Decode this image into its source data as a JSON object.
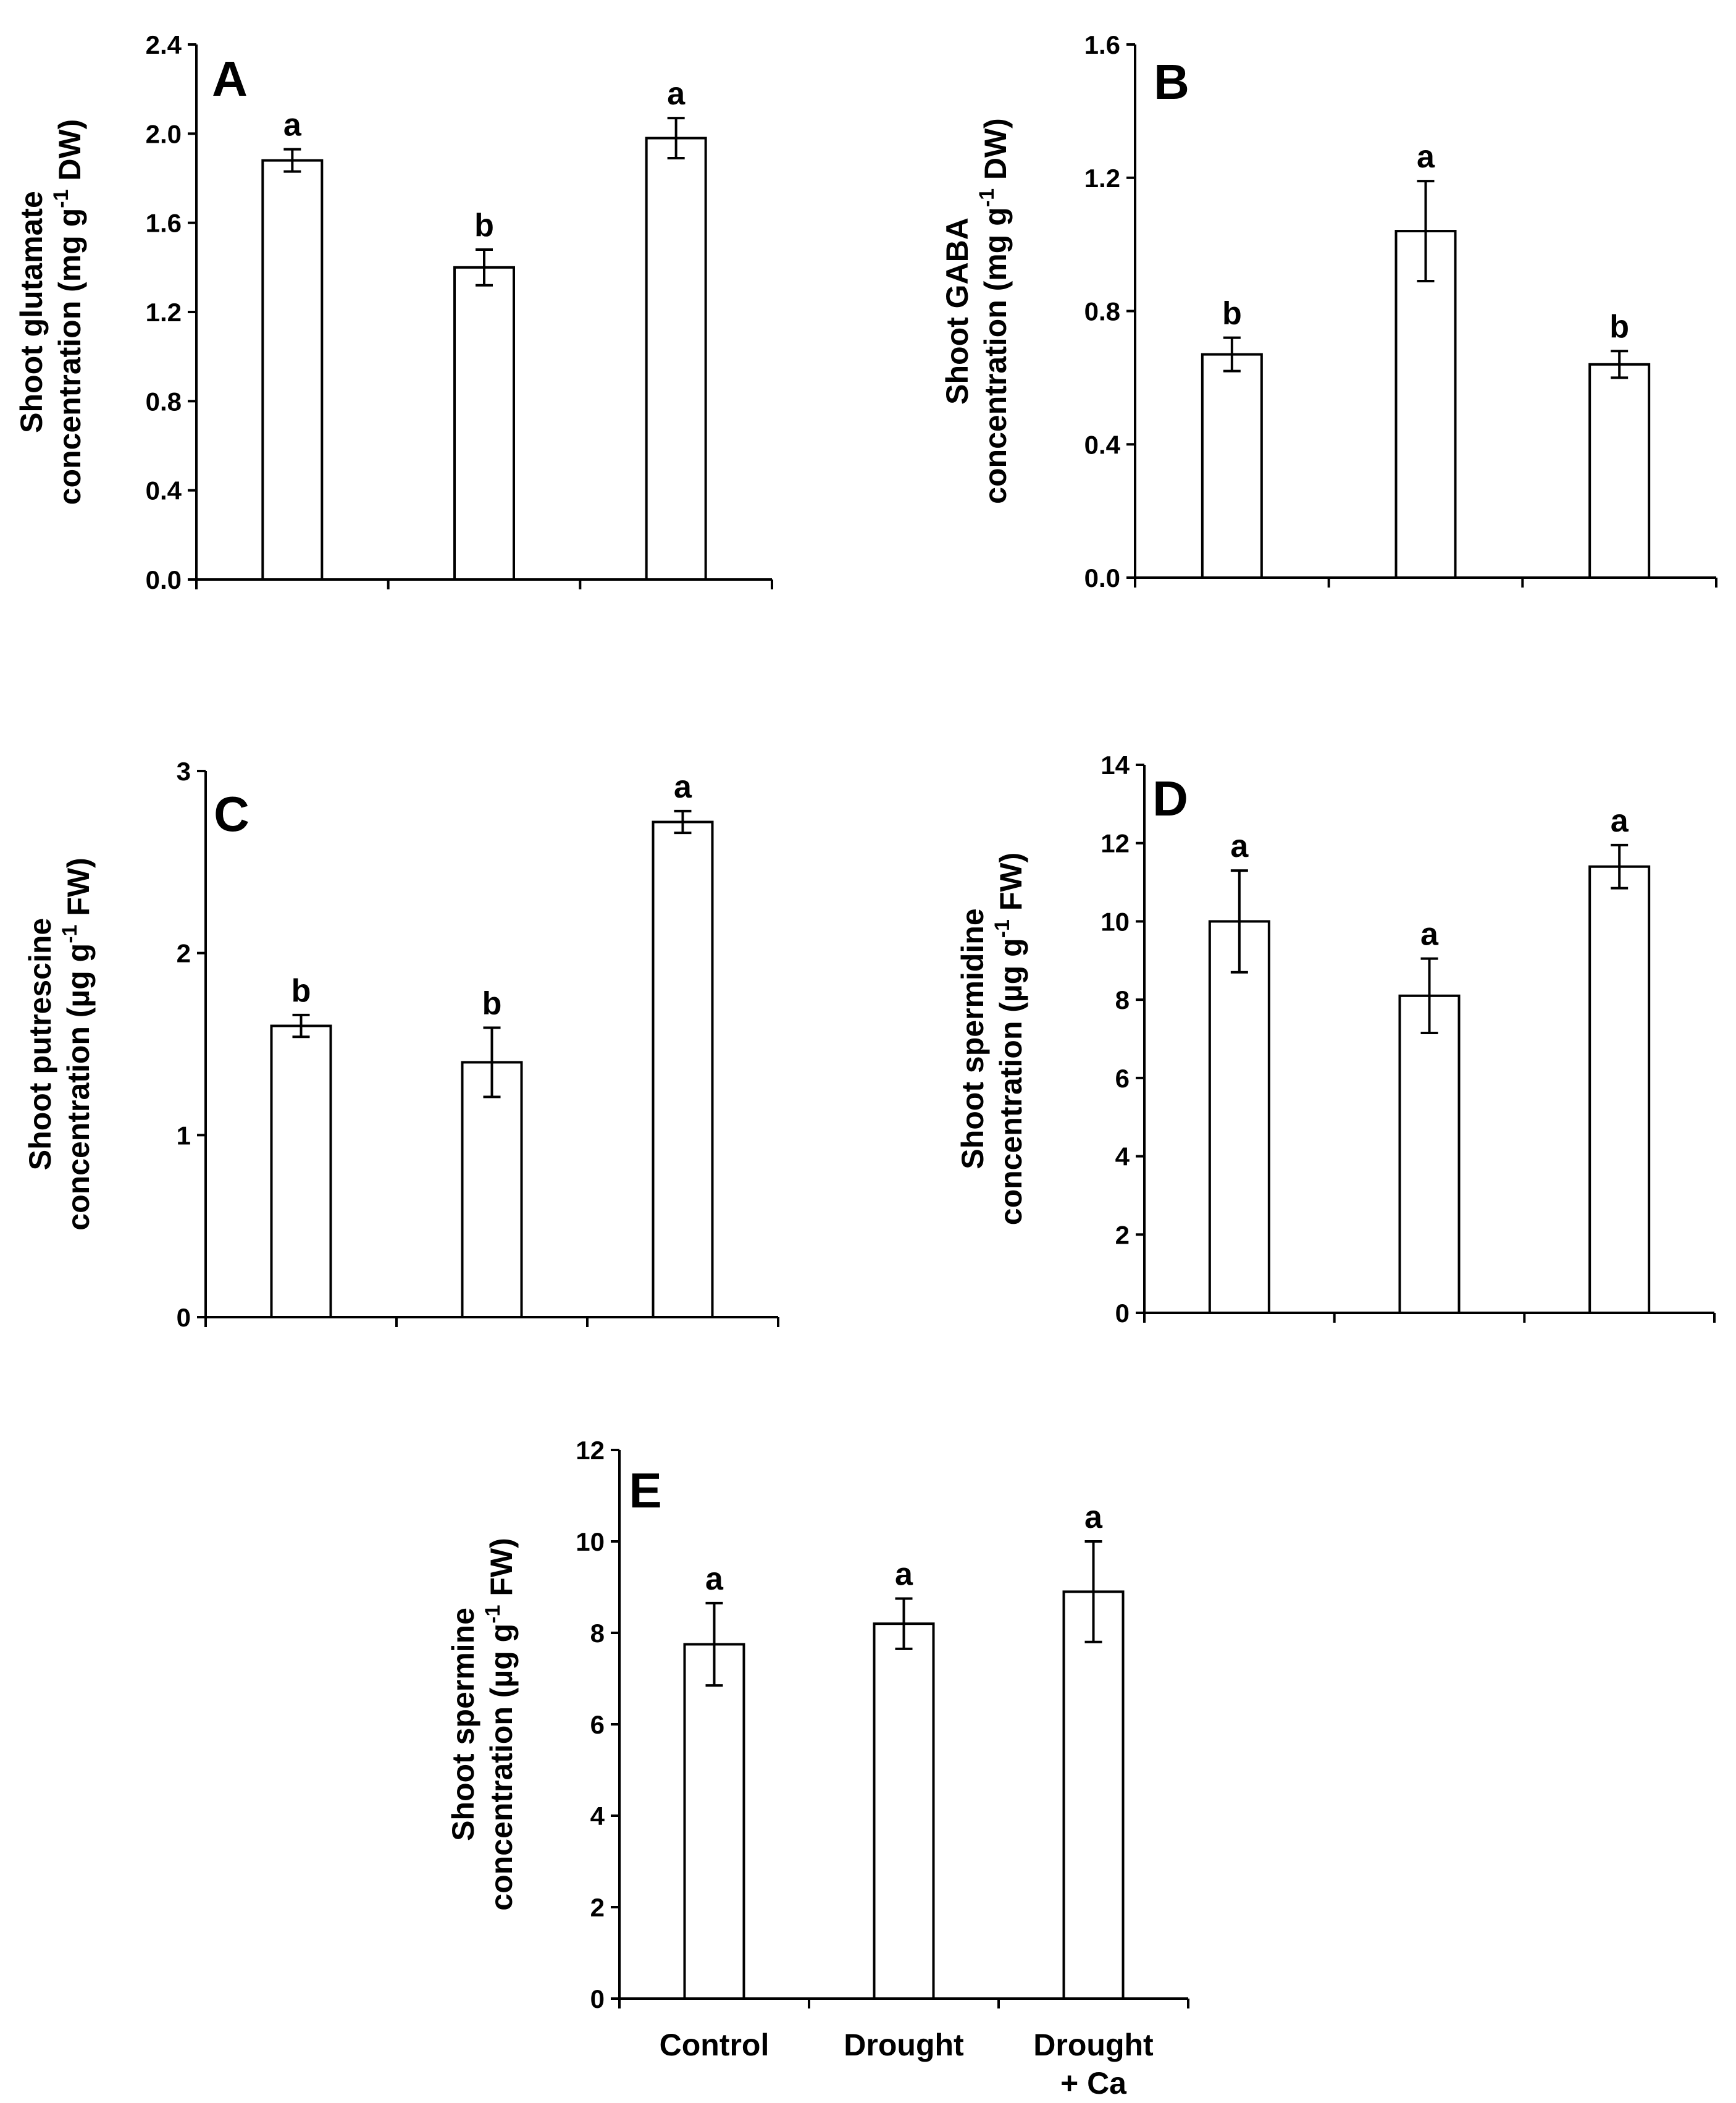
{
  "figure": {
    "categories": [
      "Control",
      "Drought",
      "Drought",
      "+ Ca"
    ],
    "category_lines": [
      [
        "Control"
      ],
      [
        "Drought"
      ],
      [
        "Drought",
        "+ Ca"
      ]
    ]
  },
  "chart_data": [
    {
      "type": "bar",
      "panel": "A",
      "ylabel_lines": [
        "Shoot glutamate",
        "concentration (mg g",
        "-1",
        " DW)"
      ],
      "ylim": [
        0,
        2.4
      ],
      "yticks": [
        "0.0",
        "0.4",
        "0.8",
        "1.2",
        "1.6",
        "2.0",
        "2.4"
      ],
      "categories": [
        "Control",
        "Drought",
        "Drought + Ca"
      ],
      "values": [
        1.88,
        1.4,
        1.98
      ],
      "errors": [
        0.05,
        0.08,
        0.09
      ],
      "letters": [
        "a",
        "b",
        "a"
      ]
    },
    {
      "type": "bar",
      "panel": "B",
      "ylabel_lines": [
        "Shoot GABA",
        "concentration (mg g",
        "-1",
        " DW)"
      ],
      "ylim": [
        0,
        1.6
      ],
      "yticks": [
        "0.0",
        "0.4",
        "0.8",
        "1.2",
        "1.6"
      ],
      "categories": [
        "Control",
        "Drought",
        "Drought + Ca"
      ],
      "values": [
        0.67,
        1.04,
        0.64
      ],
      "errors": [
        0.05,
        0.15,
        0.04
      ],
      "letters": [
        "b",
        "a",
        "b"
      ]
    },
    {
      "type": "bar",
      "panel": "C",
      "ylabel_lines": [
        "Shoot putrescine",
        "concentration (µg g",
        "-1",
        " FW)"
      ],
      "ylim": [
        0,
        3
      ],
      "yticks": [
        "0",
        "1",
        "2",
        "3"
      ],
      "categories": [
        "Control",
        "Drought",
        "Drought + Ca"
      ],
      "values": [
        1.6,
        1.4,
        2.72
      ],
      "errors": [
        0.06,
        0.19,
        0.06
      ],
      "letters": [
        "b",
        "b",
        "a"
      ]
    },
    {
      "type": "bar",
      "panel": "D",
      "ylabel_lines": [
        "Shoot spermidine",
        "concentration (µg g",
        "-1",
        " FW)"
      ],
      "ylim": [
        0,
        14
      ],
      "yticks": [
        "0",
        "2",
        "4",
        "6",
        "8",
        "10",
        "12",
        "14"
      ],
      "categories": [
        "Control",
        "Drought",
        "Drought + Ca"
      ],
      "values": [
        10.0,
        8.1,
        11.4
      ],
      "errors": [
        1.3,
        0.95,
        0.55
      ],
      "letters": [
        "a",
        "a",
        "a"
      ]
    },
    {
      "type": "bar",
      "panel": "E",
      "ylabel_lines": [
        "Shoot spermine",
        "concentration (µg g",
        "-1",
        " FW)"
      ],
      "ylim": [
        0,
        12
      ],
      "yticks": [
        "0",
        "2",
        "4",
        "6",
        "8",
        "10",
        "12"
      ],
      "categories": [
        "Control",
        "Drought",
        "Drought + Ca"
      ],
      "values": [
        7.75,
        8.2,
        8.9
      ],
      "errors": [
        0.9,
        0.55,
        1.1
      ],
      "letters": [
        "a",
        "a",
        "a"
      ]
    }
  ]
}
